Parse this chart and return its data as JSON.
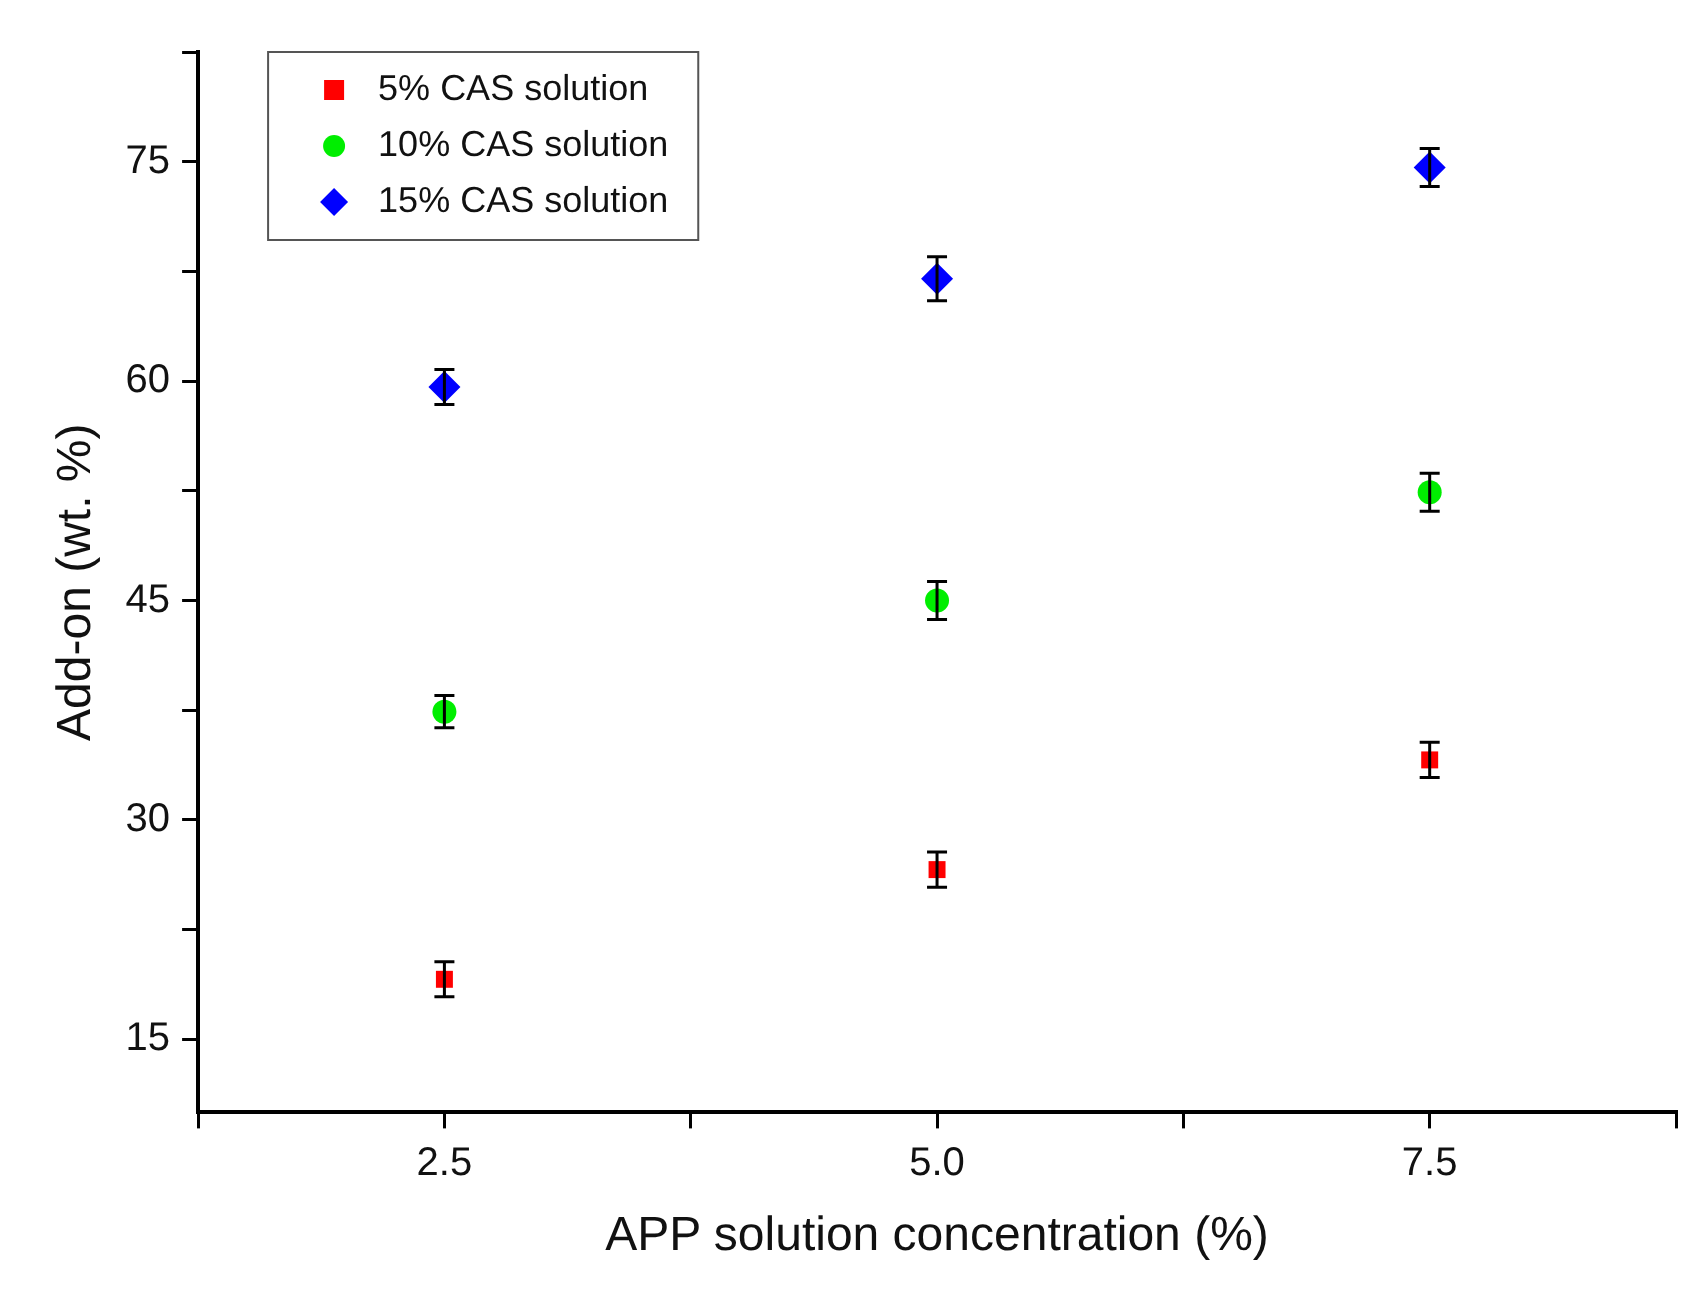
{
  "chart_data": {
    "type": "scatter",
    "xlabel": "APP solution concentration (%)",
    "ylabel": "Add-on (wt. %)",
    "x": [
      2.5,
      5.0,
      7.5
    ],
    "series": [
      {
        "name": "5% CAS solution",
        "color": "#ff0000",
        "marker": "square",
        "values": [
          19.1,
          26.6,
          34.1
        ],
        "errors": [
          1.2,
          1.2,
          1.2
        ]
      },
      {
        "name": "10% CAS solution",
        "color": "#00ee00",
        "marker": "circle",
        "values": [
          37.4,
          45.0,
          52.4
        ],
        "errors": [
          1.1,
          1.3,
          1.3
        ]
      },
      {
        "name": "15% CAS solution",
        "color": "#0000ff",
        "marker": "diamond",
        "values": [
          59.6,
          67.0,
          74.6
        ],
        "errors": [
          1.2,
          1.5,
          1.3
        ]
      }
    ],
    "xlim": [
      1.25,
      8.75
    ],
    "xticks": [
      {
        "value": 1.25,
        "label": null
      },
      {
        "value": 2.5,
        "label": "2.5"
      },
      {
        "value": 3.75,
        "label": null
      },
      {
        "value": 5.0,
        "label": "5.0"
      },
      {
        "value": 6.25,
        "label": null
      },
      {
        "value": 7.5,
        "label": "7.5"
      },
      {
        "value": 8.75,
        "label": null
      }
    ],
    "ylim": [
      10,
      82.5
    ],
    "yticks": [
      15,
      {
        "value": 22.5,
        "label": null
      },
      30,
      {
        "value": 37.5,
        "label": null
      },
      45,
      {
        "value": 52.5,
        "label": null
      },
      60,
      {
        "value": 67.5,
        "label": null
      },
      75,
      {
        "value": 82.5,
        "label": null
      }
    ],
    "grid": false,
    "legend": "top left"
  }
}
